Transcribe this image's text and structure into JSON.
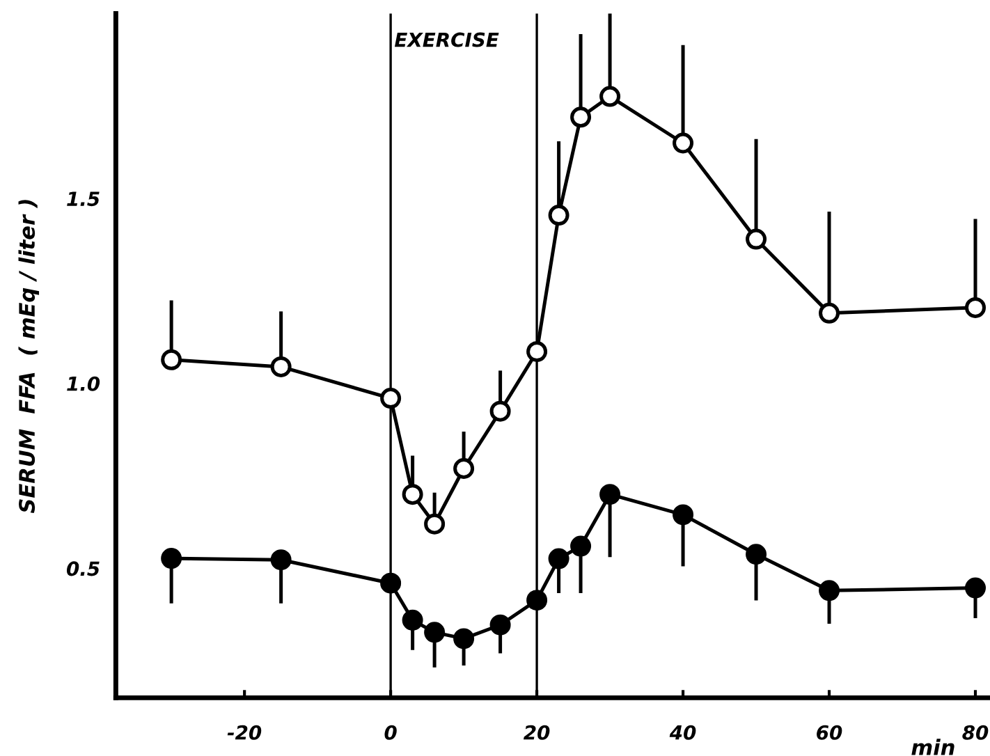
{
  "chart_data": {
    "type": "line",
    "xlabel": "min",
    "ylabel": "SERUM  FFA  ( mEq / liter )",
    "xlim": [
      -37.6,
      82
    ],
    "ylim": [
      0.15,
      2.0
    ],
    "xticks": [
      -20,
      0,
      20,
      40,
      60,
      80
    ],
    "yticks": [
      {
        "value": 0.5,
        "label": "0.5"
      },
      {
        "value": 1.0,
        "label": "1.0"
      },
      {
        "value": 1.5,
        "label": "1.5"
      }
    ],
    "grid": false,
    "legend": false,
    "marker": "circle",
    "line_style": "solid",
    "x": [
      -30,
      -15,
      0,
      3,
      6,
      10,
      15,
      20,
      23,
      26,
      30,
      40,
      50,
      60,
      80
    ],
    "ref_lines": [
      {
        "axis": "x",
        "value": 0,
        "label": "EXERCISE",
        "color": "#000000"
      },
      {
        "axis": "x",
        "value": 20,
        "color": "#000000"
      }
    ],
    "series": [
      {
        "color": "#000000",
        "values": [
          1.064,
          1.045,
          0.96,
          0.7,
          0.62,
          0.77,
          0.925,
          1.086,
          1.455,
          1.72,
          1.776,
          1.65,
          1.39,
          1.19,
          1.205
        ],
        "errors": [
          [
            1.064,
            1.22
          ],
          [
            1.045,
            1.19
          ],
          null,
          [
            0.7,
            0.8
          ],
          [
            0.62,
            0.7
          ],
          [
            0.77,
            0.865
          ],
          [
            0.925,
            1.03
          ],
          null,
          [
            1.455,
            1.65
          ],
          [
            1.72,
            1.94
          ],
          [
            1.776,
            2.0
          ],
          [
            1.65,
            1.91
          ],
          [
            1.39,
            1.656
          ],
          [
            1.19,
            1.46
          ],
          [
            1.205,
            1.44
          ]
        ]
      },
      {
        "color": "#000000",
        "values": [
          0.527,
          0.523,
          0.46,
          0.36,
          0.327,
          0.31,
          0.347,
          0.414,
          0.526,
          0.56,
          0.7,
          0.645,
          0.538,
          0.44,
          0.447
        ],
        "errors": [
          [
            0.41,
            0.527
          ],
          [
            0.41,
            0.523
          ],
          null,
          [
            0.284,
            0.36
          ],
          [
            0.237,
            0.327
          ],
          [
            0.242,
            0.31
          ],
          [
            0.275,
            0.347
          ],
          null,
          [
            0.438,
            0.526
          ],
          [
            0.438,
            0.56
          ],
          [
            0.535,
            0.7
          ],
          [
            0.51,
            0.645
          ],
          [
            0.418,
            0.538
          ],
          [
            0.355,
            0.44
          ],
          [
            0.37,
            0.447
          ]
        ]
      }
    ]
  }
}
